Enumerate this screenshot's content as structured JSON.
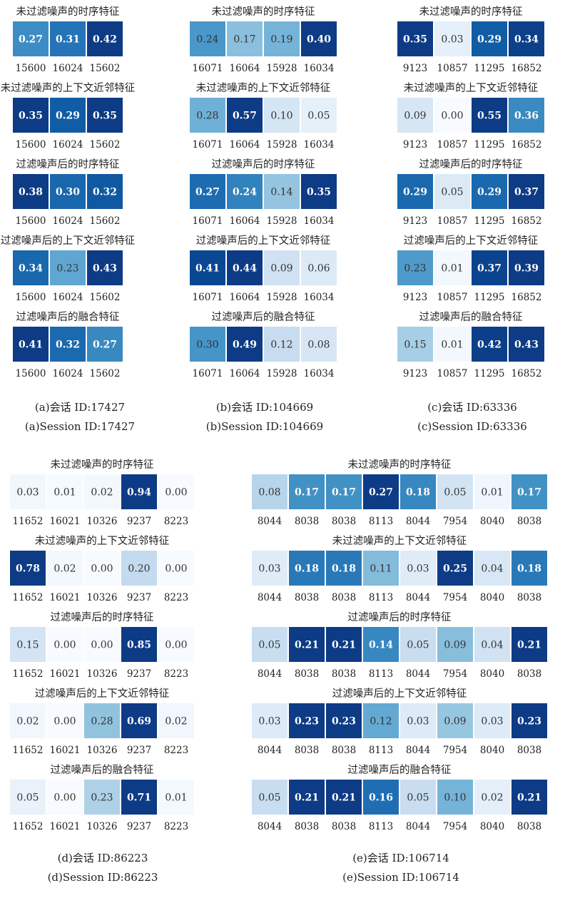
{
  "chart_data": [
    {
      "type": "heatmap",
      "caption_cn": "(a)会话 ID:17427",
      "caption_en": "(a)Session ID:17427",
      "rows": [
        {
          "title": "未过滤噪声的时序特征",
          "categories": [
            "15600",
            "16024",
            "15602"
          ],
          "values": [
            "0.27",
            "0.31",
            "0.42"
          ]
        },
        {
          "title": "未过滤噪声的上下文近邻特征",
          "categories": [
            "15600",
            "16024",
            "15602"
          ],
          "values": [
            "0.35",
            "0.29",
            "0.35"
          ]
        },
        {
          "title": "过滤噪声后的时序特征",
          "categories": [
            "15600",
            "16024",
            "15602"
          ],
          "values": [
            "0.38",
            "0.30",
            "0.32"
          ]
        },
        {
          "title": "过滤噪声后的上下文近邻特征",
          "categories": [
            "15600",
            "16024",
            "15602"
          ],
          "values": [
            "0.34",
            "0.23",
            "0.43"
          ]
        },
        {
          "title": "过滤噪声后的融合特征",
          "categories": [
            "15600",
            "16024",
            "15602"
          ],
          "values": [
            "0.41",
            "0.32",
            "0.27"
          ]
        }
      ]
    },
    {
      "type": "heatmap",
      "caption_cn": "(b)会话 ID:104669",
      "caption_en": "(b)Session ID:104669",
      "rows": [
        {
          "title": "未过滤噪声的时序特征",
          "categories": [
            "16071",
            "16064",
            "15928",
            "16034"
          ],
          "values": [
            "0.24",
            "0.17",
            "0.19",
            "0.40"
          ]
        },
        {
          "title": "未过滤噪声的上下文近邻特征",
          "categories": [
            "16071",
            "16064",
            "15928",
            "16034"
          ],
          "values": [
            "0.28",
            "0.57",
            "0.10",
            "0.05"
          ]
        },
        {
          "title": "过滤噪声后的时序特征",
          "categories": [
            "16071",
            "16064",
            "15928",
            "16034"
          ],
          "values": [
            "0.27",
            "0.24",
            "0.14",
            "0.35"
          ]
        },
        {
          "title": "过滤噪声后的上下文近邻特征",
          "categories": [
            "16071",
            "16064",
            "15928",
            "16034"
          ],
          "values": [
            "0.41",
            "0.44",
            "0.09",
            "0.06"
          ]
        },
        {
          "title": "过滤噪声后的融合特征",
          "categories": [
            "16071",
            "16064",
            "15928",
            "16034"
          ],
          "values": [
            "0.30",
            "0.49",
            "0.12",
            "0.08"
          ]
        }
      ]
    },
    {
      "type": "heatmap",
      "caption_cn": "(c)会话 ID:63336",
      "caption_en": "(c)Session ID:63336",
      "rows": [
        {
          "title": "未过滤噪声的时序特征",
          "categories": [
            "9123",
            "10857",
            "11295",
            "16852"
          ],
          "values": [
            "0.35",
            "0.03",
            "0.29",
            "0.34"
          ]
        },
        {
          "title": "未过滤噪声的上下文近邻特征",
          "categories": [
            "9123",
            "10857",
            "11295",
            "16852"
          ],
          "values": [
            "0.09",
            "0.00",
            "0.55",
            "0.36"
          ]
        },
        {
          "title": "过滤噪声后的时序特征",
          "categories": [
            "9123",
            "10857",
            "11295",
            "16852"
          ],
          "values": [
            "0.29",
            "0.05",
            "0.29",
            "0.37"
          ]
        },
        {
          "title": "过滤噪声后的上下文近邻特征",
          "categories": [
            "9123",
            "10857",
            "11295",
            "16852"
          ],
          "values": [
            "0.23",
            "0.01",
            "0.37",
            "0.39"
          ]
        },
        {
          "title": "过滤噪声后的融合特征",
          "categories": [
            "9123",
            "10857",
            "11295",
            "16852"
          ],
          "values": [
            "0.15",
            "0.01",
            "0.42",
            "0.43"
          ]
        }
      ]
    },
    {
      "type": "heatmap",
      "caption_cn": "(d)会话 ID:86223",
      "caption_en": "(d)Session ID:86223",
      "rows": [
        {
          "title": "未过滤噪声的时序特征",
          "categories": [
            "11652",
            "16021",
            "10326",
            "9237",
            "8223"
          ],
          "values": [
            "0.03",
            "0.01",
            "0.02",
            "0.94",
            "0.00"
          ]
        },
        {
          "title": "未过滤噪声的上下文近邻特征",
          "categories": [
            "11652",
            "16021",
            "10326",
            "9237",
            "8223"
          ],
          "values": [
            "0.78",
            "0.02",
            "0.00",
            "0.20",
            "0.00"
          ]
        },
        {
          "title": "过滤噪声后的时序特征",
          "categories": [
            "11652",
            "16021",
            "10326",
            "9237",
            "8223"
          ],
          "values": [
            "0.15",
            "0.00",
            "0.00",
            "0.85",
            "0.00"
          ]
        },
        {
          "title": "过滤噪声后的上下文近邻特征",
          "categories": [
            "11652",
            "16021",
            "10326",
            "9237",
            "8223"
          ],
          "values": [
            "0.02",
            "0.00",
            "0.28",
            "0.69",
            "0.02"
          ]
        },
        {
          "title": "过滤噪声后的融合特征",
          "categories": [
            "11652",
            "16021",
            "10326",
            "9237",
            "8223"
          ],
          "values": [
            "0.05",
            "0.00",
            "0.23",
            "0.71",
            "0.01"
          ]
        }
      ]
    },
    {
      "type": "heatmap",
      "caption_cn": "(e)会话 ID:106714",
      "caption_en": "(e)Session ID:106714",
      "rows": [
        {
          "title": "未过滤噪声的时序特征",
          "categories": [
            "8044",
            "8038",
            "8038",
            "8113",
            "8044",
            "7954",
            "8040",
            "8038"
          ],
          "values": [
            "0.08",
            "0.17",
            "0.17",
            "0.27",
            "0.18",
            "0.05",
            "0.01",
            "0.17"
          ]
        },
        {
          "title": "未过滤噪声的上下文近邻特征",
          "categories": [
            "8044",
            "8038",
            "8038",
            "8113",
            "8044",
            "7954",
            "8040",
            "8038"
          ],
          "values": [
            "0.03",
            "0.18",
            "0.18",
            "0.11",
            "0.03",
            "0.25",
            "0.04",
            "0.18"
          ]
        },
        {
          "title": "过滤噪声后的时序特征",
          "categories": [
            "8044",
            "8038",
            "8038",
            "8113",
            "8044",
            "7954",
            "8040",
            "8038"
          ],
          "values": [
            "0.05",
            "0.21",
            "0.21",
            "0.14",
            "0.05",
            "0.09",
            "0.04",
            "0.21"
          ]
        },
        {
          "title": "过滤噪声后的上下文近邻特征",
          "categories": [
            "8044",
            "8038",
            "8038",
            "8113",
            "8044",
            "7954",
            "8040",
            "8038"
          ],
          "values": [
            "0.03",
            "0.23",
            "0.23",
            "0.12",
            "0.03",
            "0.09",
            "0.03",
            "0.23"
          ]
        },
        {
          "title": "过滤噪声后的融合特征",
          "categories": [
            "8044",
            "8038",
            "8038",
            "8113",
            "8044",
            "7954",
            "8040",
            "8038"
          ],
          "values": [
            "0.05",
            "0.21",
            "0.21",
            "0.16",
            "0.05",
            "0.10",
            "0.02",
            "0.21"
          ]
        }
      ]
    }
  ],
  "colormap": [
    "#f7fbff",
    "#deebf7",
    "#c6dbef",
    "#9ecae1",
    "#6baed6",
    "#4292c6",
    "#2171b5",
    "#08519c",
    "#0d3b85"
  ]
}
